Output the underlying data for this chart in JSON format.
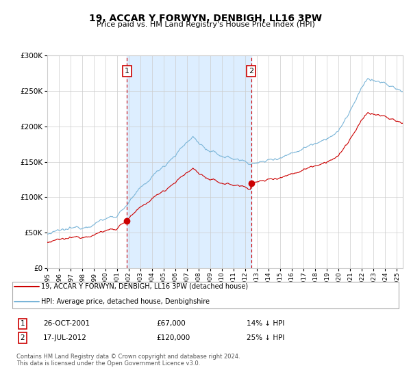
{
  "title": "19, ACCAR Y FORWYN, DENBIGH, LL16 3PW",
  "subtitle": "Price paid vs. HM Land Registry's House Price Index (HPI)",
  "legend_line1": "19, ACCAR Y FORWYN, DENBIGH, LL16 3PW (detached house)",
  "legend_line2": "HPI: Average price, detached house, Denbighshire",
  "marker1_date": "26-OCT-2001",
  "marker1_price": 67000,
  "marker1_hpi": "14% ↓ HPI",
  "marker1_label": "1",
  "marker2_date": "17-JUL-2012",
  "marker2_price": 120000,
  "marker2_hpi": "25% ↓ HPI",
  "marker2_label": "2",
  "footnote1": "Contains HM Land Registry data © Crown copyright and database right 2024.",
  "footnote2": "This data is licensed under the Open Government Licence v3.0.",
  "hpi_color": "#7ab5d8",
  "property_color": "#cc0000",
  "shaded_region_color": "#ddeeff",
  "marker_vline_color": "#cc0000",
  "ylim": [
    0,
    300000
  ],
  "yticks": [
    0,
    50000,
    100000,
    150000,
    200000,
    250000,
    300000
  ],
  "xlim_start": 1995.0,
  "xlim_end": 2025.5
}
